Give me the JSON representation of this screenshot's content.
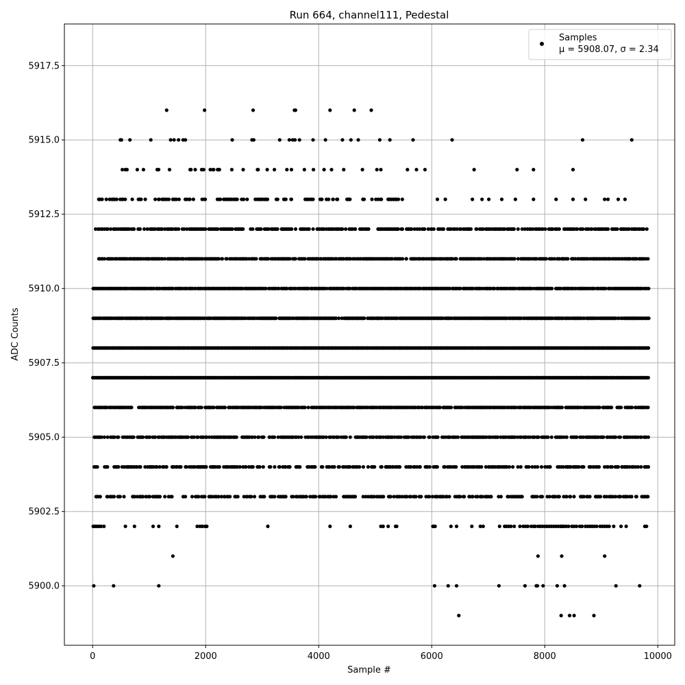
{
  "chart_data": {
    "type": "scatter",
    "title": "Run 664, channel111, Pedestal",
    "xlabel": "Sample #",
    "ylabel": "ADC Counts",
    "xlim": [
      -500,
      10300
    ],
    "ylim": [
      5898.0,
      5918.9
    ],
    "xticks": [
      "0",
      "2000",
      "4000",
      "6000",
      "8000",
      "10000"
    ],
    "xtick_values": [
      0,
      2000,
      4000,
      6000,
      8000,
      10000
    ],
    "yticks": [
      "5900.0",
      "5902.5",
      "5905.0",
      "5907.5",
      "5910.0",
      "5912.5",
      "5915.0",
      "5917.5"
    ],
    "ytick_values": [
      5900.0,
      5902.5,
      5905.0,
      5907.5,
      5910.0,
      5912.5,
      5915.0,
      5917.5
    ],
    "grid": true,
    "legend": {
      "location": "top-right",
      "label_line1": "Samples",
      "label_line2": "μ = 5908.07, σ = 2.34"
    },
    "marker_color": "#000000",
    "n_samples": 9830,
    "series": [
      {
        "name": "Samples",
        "points": [
          [
            20,
            5900
          ],
          [
            370,
            5900
          ],
          [
            1170,
            5900
          ],
          [
            6050,
            5900
          ],
          [
            6290,
            5900
          ],
          [
            6440,
            5900
          ],
          [
            7190,
            5900
          ],
          [
            7650,
            5900
          ],
          [
            7850,
            5900
          ],
          [
            7870,
            5900
          ],
          [
            7970,
            5900
          ],
          [
            8220,
            5900
          ],
          [
            8350,
            5900
          ],
          [
            9260,
            5900
          ],
          [
            9680,
            5900
          ],
          [
            6480,
            5899
          ],
          [
            8290,
            5899
          ],
          [
            8440,
            5899
          ],
          [
            8520,
            5899
          ],
          [
            8870,
            5899
          ],
          [
            1420,
            5901
          ],
          [
            7880,
            5901
          ],
          [
            8300,
            5901
          ],
          [
            9060,
            5901
          ],
          [
            1310,
            5916
          ],
          [
            1980,
            5916
          ],
          [
            2840,
            5916
          ],
          [
            3570,
            5916
          ],
          [
            3590,
            5916
          ],
          [
            4200,
            5916
          ],
          [
            4630,
            5916
          ],
          [
            4930,
            5916
          ],
          [
            490,
            5915
          ],
          [
            510,
            5915
          ],
          [
            660,
            5915
          ],
          [
            1030,
            5915
          ],
          [
            1380,
            5915
          ],
          [
            1440,
            5915
          ],
          [
            1520,
            5915
          ],
          [
            1600,
            5915
          ],
          [
            1640,
            5915
          ],
          [
            2470,
            5915
          ],
          [
            2820,
            5915
          ],
          [
            2850,
            5915
          ],
          [
            3310,
            5915
          ],
          [
            3480,
            5915
          ],
          [
            3540,
            5915
          ],
          [
            3580,
            5915
          ],
          [
            3660,
            5915
          ],
          [
            3900,
            5915
          ],
          [
            4120,
            5915
          ],
          [
            4420,
            5915
          ],
          [
            4570,
            5915
          ],
          [
            4700,
            5915
          ],
          [
            5080,
            5915
          ],
          [
            5260,
            5915
          ],
          [
            5670,
            5915
          ],
          [
            6360,
            5915
          ],
          [
            8670,
            5915
          ],
          [
            9540,
            5915
          ],
          [
            5030,
            5914
          ],
          [
            5100,
            5914
          ],
          [
            5570,
            5914
          ],
          [
            5730,
            5914
          ],
          [
            5880,
            5914
          ],
          [
            6750,
            5914
          ],
          [
            7510,
            5914
          ],
          [
            7800,
            5914
          ],
          [
            8500,
            5914
          ],
          [
            6100,
            5913
          ],
          [
            6240,
            5913
          ],
          [
            6720,
            5913
          ],
          [
            6890,
            5913
          ],
          [
            7010,
            5913
          ],
          [
            7240,
            5913
          ],
          [
            7480,
            5913
          ],
          [
            7800,
            5913
          ],
          [
            8200,
            5913
          ],
          [
            8500,
            5913
          ],
          [
            8720,
            5913
          ],
          [
            9060,
            5913
          ],
          [
            9120,
            5913
          ],
          [
            9300,
            5913
          ],
          [
            9420,
            5913
          ]
        ],
        "bands": [
          {
            "y": 5902,
            "xs": [
              10,
              30,
              60,
              90,
              120,
              150,
              200,
              580,
              740,
              1070,
              1170,
              1490,
              1850,
              1900,
              1940,
              1990,
              2020,
              3100,
              4200,
              4560,
              5100,
              5140,
              5230,
              5360,
              5380,
              6020,
              6040,
              6060,
              6340,
              6440,
              6710,
              6860,
              6910,
              7200,
              7290,
              7320,
              7360,
              7400,
              7460,
              7560,
              7620,
              7660,
              7700,
              7760,
              7800,
              7830,
              7880,
              7920,
              7960,
              8000,
              8040,
              8080,
              8120,
              8160,
              8200,
              8240,
              8280,
              8300,
              8320,
              8340,
              8380,
              8420,
              8480,
              8520,
              8560,
              8620,
              8660,
              8720,
              8760,
              8800,
              8840,
              8880,
              8920,
              8980,
              9020,
              9060,
              9100,
              9140,
              9220,
              9350,
              9440,
              9770,
              9800
            ]
          },
          {
            "y": 5903,
            "dense_from": 30,
            "dense_to": 9830,
            "density": 0.45
          },
          {
            "y": 5904,
            "dense_from": 10,
            "dense_to": 9830,
            "density": 0.5
          },
          {
            "y": 5905,
            "dense_from": 0,
            "dense_to": 9830,
            "density": 0.6
          },
          {
            "y": 5906,
            "dense_from": 0,
            "dense_to": 9830,
            "density": 0.8
          },
          {
            "y": 5907,
            "dense_from": 0,
            "dense_to": 9830,
            "density": 1.0
          },
          {
            "y": 5908,
            "dense_from": 0,
            "dense_to": 9830,
            "density": 1.0
          },
          {
            "y": 5909,
            "dense_from": 0,
            "dense_to": 9830,
            "density": 0.9
          },
          {
            "y": 5910,
            "dense_from": 0,
            "dense_to": 9830,
            "density": 0.9
          },
          {
            "y": 5911,
            "dense_from": 80,
            "dense_to": 9830,
            "density": 0.75
          },
          {
            "y": 5912,
            "dense_from": 40,
            "dense_to": 9800,
            "density": 0.6
          },
          {
            "y": 5913,
            "dense_from": 60,
            "dense_to": 5500,
            "density": 0.35
          },
          {
            "y": 5914,
            "dense_from": 350,
            "dense_to": 4900,
            "density": 0.12
          }
        ]
      }
    ]
  }
}
